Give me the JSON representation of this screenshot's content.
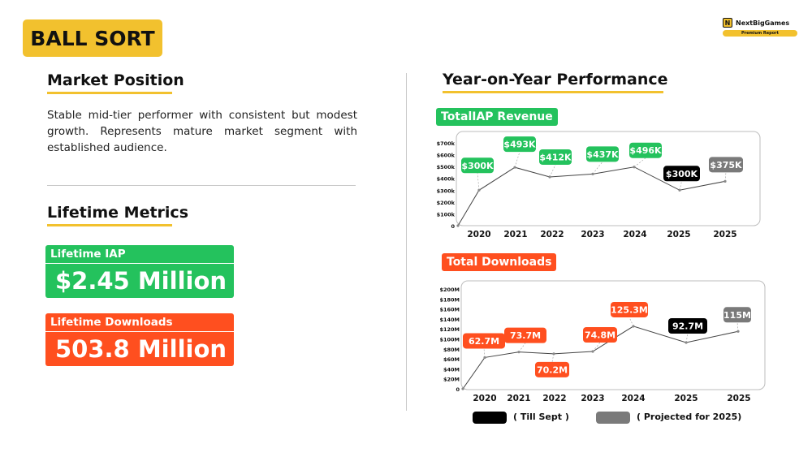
{
  "title": "BALL SORT",
  "brand": {
    "logo": "N",
    "name": "NextBigGames",
    "sub": "Premium Report"
  },
  "market_position": {
    "heading": "Market Position",
    "text": "Stable mid-tier performer with consistent but modest growth. Represents mature market segment with established audience."
  },
  "lifetime": {
    "heading": "Lifetime Metrics",
    "iap_label": "Lifetime IAP",
    "iap_value": "$2.45 Million",
    "downloads_label": "Lifetime Downloads",
    "downloads_value": "503.8 Million"
  },
  "yoy": {
    "heading": "Year-on-Year Performance"
  },
  "colors": {
    "accent": "#f2c12e",
    "green": "#24c25d",
    "red": "#ff4f1f",
    "black": "#000000",
    "grey": "#7a7a7a"
  },
  "legend": {
    "till_sept": "( Till Sept )",
    "projected": "( Projected for 2025)"
  },
  "chart_data": [
    {
      "type": "line",
      "title": "TotalIAP Revenue",
      "categories": [
        "2020",
        "2021",
        "2022",
        "2023",
        "2024",
        "2025",
        "2025"
      ],
      "values": [
        300,
        493,
        412,
        437,
        496,
        300,
        375
      ],
      "labels": [
        "$300K",
        "$493K",
        "$412K",
        "$437K",
        "$496K",
        "$300K",
        "$375K"
      ],
      "label_colors": [
        "green",
        "green",
        "green",
        "green",
        "green",
        "black",
        "grey"
      ],
      "y_ticks": [
        "0",
        "$100k",
        "$200k",
        "$300k",
        "$400k",
        "$500k",
        "$600k",
        "$700k"
      ],
      "ylim": [
        0,
        700
      ]
    },
    {
      "type": "line",
      "title": "Total Downloads",
      "categories": [
        "2020",
        "2021",
        "2022",
        "2023",
        "2024",
        "2025",
        "2025"
      ],
      "values": [
        62.7,
        73.7,
        70.2,
        74.8,
        125.3,
        92.7,
        115
      ],
      "labels": [
        "62.7M",
        "73.7M",
        "70.2M",
        "74.8M",
        "125.3M",
        "92.7M",
        "115M"
      ],
      "label_colors": [
        "red",
        "red",
        "red",
        "red",
        "red",
        "black",
        "grey"
      ],
      "y_ticks": [
        "0",
        "$20M",
        "$40M",
        "$60M",
        "$80M",
        "$100M",
        "$120M",
        "$140M",
        "$160M",
        "$180M",
        "$200M"
      ],
      "ylim": [
        0,
        200
      ]
    }
  ]
}
